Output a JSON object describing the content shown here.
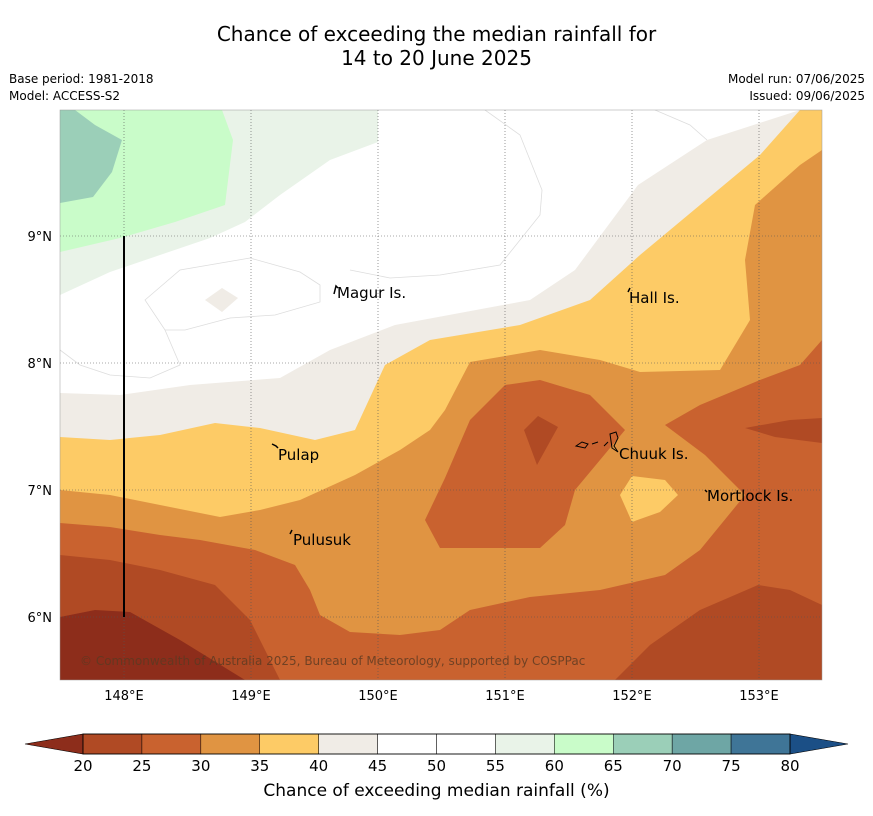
{
  "title_line1": "Chance of exceeding the median rainfall for",
  "title_line2": "14 to 20 June 2025",
  "meta_left": [
    "Base period: 1981-2018",
    "Model: ACCESS-S2"
  ],
  "meta_right": [
    "Model run: 07/06/2025",
    "Issued: 09/06/2025"
  ],
  "copyright": "© Commonwealth of Australia 2025, Bureau of Meteorology, supported by COSPPac",
  "lat_labels": [
    "9°N",
    "8°N",
    "7°N",
    "6°N"
  ],
  "lon_labels": [
    "148°E",
    "149°E",
    "150°E",
    "151°E",
    "152°E",
    "153°E"
  ],
  "places": [
    {
      "name": "Magur Is."
    },
    {
      "name": "Hall Is."
    },
    {
      "name": "Pulap"
    },
    {
      "name": "Chuuk Is."
    },
    {
      "name": "Mortlock Is."
    },
    {
      "name": "Pulusuk"
    }
  ],
  "colorbar": {
    "label": "Chance of exceeding median rainfall (%)",
    "ticks": [
      "20",
      "25",
      "30",
      "35",
      "40",
      "45",
      "50",
      "55",
      "60",
      "65",
      "70",
      "75",
      "80"
    ],
    "colors": [
      "#b04a24",
      "#c9622f",
      "#e09442",
      "#fdcb66",
      "#f0ece6",
      "#ffffff",
      "#ffffff",
      "#e9f3e8",
      "#c9fcc9",
      "#9bcfb8",
      "#6ea6a5",
      "#3f7597"
    ],
    "low_extend_color": "#8d2d1b",
    "high_extend_color": "#1b4f86"
  }
}
